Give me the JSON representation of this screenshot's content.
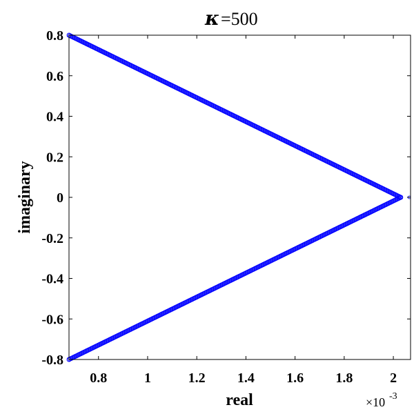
{
  "chart_data": {
    "type": "scatter",
    "title_symbol": "κ",
    "title_value": "=500",
    "xlabel": "real",
    "ylabel": "imaginary",
    "x_exponent_base": "×10",
    "x_exponent_power": "-3",
    "x_scale": 0.001,
    "xlim": [
      0.00068,
      0.00207
    ],
    "ylim": [
      -0.8,
      0.8
    ],
    "x_ticks": [
      0.8,
      1,
      1.2,
      1.4,
      1.6,
      1.8,
      2
    ],
    "x_tick_labels": [
      "0.8",
      "1",
      "1.2",
      "1.4",
      "1.6",
      "1.8",
      "2"
    ],
    "y_ticks": [
      0.8,
      0.6,
      0.4,
      0.2,
      0,
      -0.2,
      -0.4,
      -0.6,
      -0.8
    ],
    "y_tick_labels": [
      "0.8",
      "0.6",
      "0.4",
      "0.2",
      "0",
      "-0.2",
      "-0.4",
      "-0.6",
      "-0.8"
    ],
    "grid": false,
    "marker": "circle",
    "color": "#0000ff",
    "series": [
      {
        "x": [
          0.00068,
          0.00203,
          0.00068
        ],
        "y": [
          0.8,
          0.0,
          -0.8
        ]
      }
    ],
    "outlier": {
      "x": 0.002065,
      "y": 0.0
    }
  }
}
